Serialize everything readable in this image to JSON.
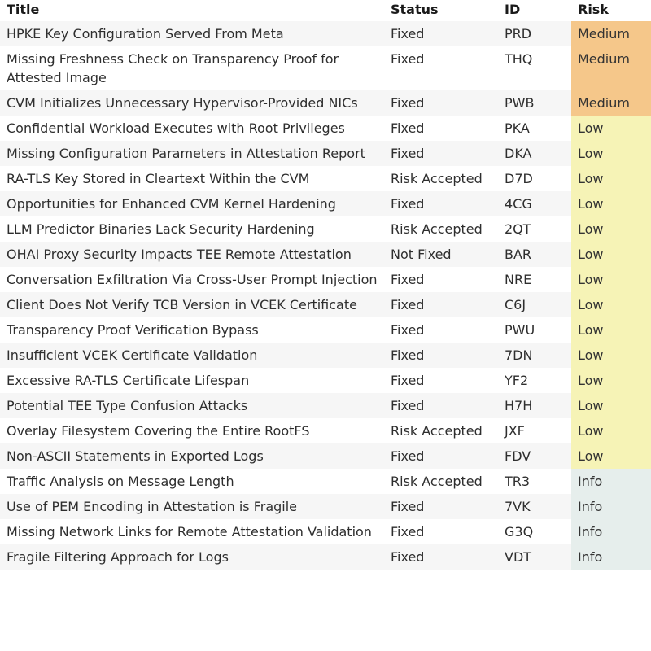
{
  "headers": {
    "title": "Title",
    "status": "Status",
    "id": "ID",
    "risk": "Risk"
  },
  "risk_colors": {
    "Medium": "#f5c78a",
    "Low": "#f6f3b6",
    "Info": "#e6eeec"
  },
  "rows": [
    {
      "title": "HPKE Key Configuration Served From Meta",
      "status": "Fixed",
      "id": "PRD",
      "risk": "Medium"
    },
    {
      "title": "Missing Freshness Check on Transparency Proof for Attested Image",
      "status": "Fixed",
      "id": "THQ",
      "risk": "Medium"
    },
    {
      "title": "CVM Initializes Unnecessary Hypervisor-Provided NICs",
      "status": "Fixed",
      "id": "PWB",
      "risk": "Medium"
    },
    {
      "title": "Confidential Workload Executes with Root Privileges",
      "status": "Fixed",
      "id": "PKA",
      "risk": "Low"
    },
    {
      "title": "Missing Configuration Parameters in Attestation Report",
      "status": "Fixed",
      "id": "DKA",
      "risk": "Low"
    },
    {
      "title": "RA-TLS Key Stored in Cleartext Within the CVM",
      "status": "Risk Accepted",
      "id": "D7D",
      "risk": "Low"
    },
    {
      "title": "Opportunities for Enhanced CVM Kernel Hardening",
      "status": "Fixed",
      "id": "4CG",
      "risk": "Low"
    },
    {
      "title": "LLM Predictor Binaries Lack Security Hardening",
      "status": "Risk Accepted",
      "id": "2QT",
      "risk": "Low"
    },
    {
      "title": "OHAI Proxy Security Impacts TEE Remote Attestation",
      "status": "Not Fixed",
      "id": "BAR",
      "risk": "Low"
    },
    {
      "title": "Conversation Exfiltration Via Cross-User Prompt Injection",
      "status": "Fixed",
      "id": "NRE",
      "risk": "Low"
    },
    {
      "title": "Client Does Not Verify TCB Version in VCEK Certificate",
      "status": "Fixed",
      "id": "C6J",
      "risk": "Low"
    },
    {
      "title": "Transparency Proof Verification Bypass",
      "status": "Fixed",
      "id": "PWU",
      "risk": "Low"
    },
    {
      "title": "Insufficient VCEK Certificate Validation",
      "status": "Fixed",
      "id": "7DN",
      "risk": "Low"
    },
    {
      "title": "Excessive RA-TLS Certificate Lifespan",
      "status": "Fixed",
      "id": "YF2",
      "risk": "Low"
    },
    {
      "title": "Potential TEE Type Confusion Attacks",
      "status": "Fixed",
      "id": "H7H",
      "risk": "Low"
    },
    {
      "title": "Overlay Filesystem Covering the Entire RootFS",
      "status": "Risk Accepted",
      "id": "JXF",
      "risk": "Low"
    },
    {
      "title": "Non-ASCII Statements in Exported Logs",
      "status": "Fixed",
      "id": "FDV",
      "risk": "Low"
    },
    {
      "title": "Traffic Analysis on Message Length",
      "status": "Risk Accepted",
      "id": "TR3",
      "risk": "Info"
    },
    {
      "title": "Use of PEM Encoding in Attestation is Fragile",
      "status": "Fixed",
      "id": "7VK",
      "risk": "Info"
    },
    {
      "title": "Missing Network Links for Remote Attestation Validation",
      "status": "Fixed",
      "id": "G3Q",
      "risk": "Info"
    },
    {
      "title": "Fragile Filtering Approach for Logs",
      "status": "Fixed",
      "id": "VDT",
      "risk": "Info"
    }
  ]
}
